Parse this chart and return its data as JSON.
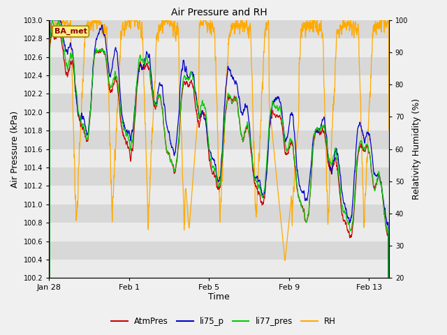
{
  "title": "Air Pressure and RH",
  "xlabel": "Time",
  "ylabel_left": "Air Pressure (kPa)",
  "ylabel_right": "Relativity Humidity (%)",
  "ylim_left": [
    100.2,
    103.0
  ],
  "ylim_right": [
    20,
    100
  ],
  "xlim": [
    0,
    17
  ],
  "date_ticks": [
    0,
    4,
    8,
    12,
    16
  ],
  "date_labels": [
    "Jan 28",
    "Feb 1",
    "Feb 5",
    "Feb 9",
    "Feb 13"
  ],
  "label_box_text": "BA_met",
  "legend_entries": [
    "AtmPres",
    "li75_p",
    "li77_pres",
    "RH"
  ],
  "legend_colors": [
    "#cc0000",
    "#0000cc",
    "#00cc00",
    "#ffaa00"
  ],
  "fig_bg": "#f0f0f0",
  "plot_bg": "#e0e0e0",
  "band_light": "#ebebeb",
  "band_dark": "#d8d8d8"
}
